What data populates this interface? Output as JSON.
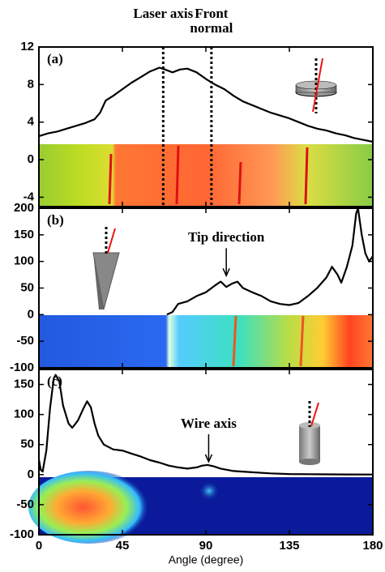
{
  "chart_data": [
    {
      "type": "line",
      "label": "(a)",
      "color": "#000000",
      "x": [
        0,
        5,
        10,
        15,
        20,
        25,
        30,
        33,
        36,
        40,
        45,
        50,
        55,
        60,
        65,
        68,
        72,
        76,
        80,
        85,
        90,
        95,
        100,
        105,
        110,
        115,
        120,
        125,
        130,
        135,
        140,
        145,
        150,
        155,
        160,
        165,
        170,
        175,
        180
      ],
      "values": [
        2.5,
        2.8,
        3.0,
        3.3,
        3.6,
        3.9,
        4.3,
        5.0,
        6.3,
        6.8,
        7.5,
        8.2,
        8.8,
        9.4,
        9.8,
        9.6,
        9.3,
        9.6,
        9.7,
        9.3,
        8.6,
        8.0,
        7.5,
        6.8,
        6.2,
        5.8,
        5.4,
        5.0,
        4.7,
        4.4,
        4.0,
        3.6,
        3.3,
        3.1,
        2.8,
        2.6,
        2.3,
        2.1,
        1.9
      ],
      "xlim": [
        0,
        180
      ],
      "xticks": [
        0,
        45,
        90,
        135,
        180
      ],
      "ylim": [
        -5,
        12
      ],
      "yticks": [
        12,
        8,
        4,
        0,
        -4
      ],
      "annotations": [
        {
          "text": "Laser axis",
          "x": 67
        },
        {
          "text": "Front normal",
          "x": 93
        }
      ]
    },
    {
      "type": "line",
      "label": "(b)",
      "color": "#000000",
      "x": [
        69,
        72,
        75,
        80,
        85,
        90,
        95,
        98,
        101,
        104,
        107,
        110,
        115,
        120,
        125,
        130,
        135,
        140,
        145,
        150,
        155,
        158,
        161,
        163,
        166,
        169,
        171,
        172,
        174,
        176,
        178,
        180
      ],
      "values": [
        0,
        5,
        20,
        25,
        35,
        42,
        55,
        62,
        52,
        58,
        62,
        50,
        42,
        35,
        25,
        20,
        18,
        22,
        35,
        50,
        70,
        90,
        75,
        60,
        90,
        130,
        190,
        200,
        150,
        115,
        100,
        110
      ],
      "xlim": [
        0,
        180
      ],
      "xticks": [
        0,
        45,
        90,
        135,
        180
      ],
      "ylim": [
        -100,
        200
      ],
      "yticks": [
        200,
        150,
        100,
        50,
        0,
        -50,
        -100
      ],
      "annotations": [
        {
          "text": "Tip direction",
          "x": 101,
          "y": 67
        }
      ]
    },
    {
      "type": "line",
      "label": "(c)",
      "color": "#000000",
      "x": [
        0,
        1,
        2,
        4,
        6,
        8,
        9,
        11,
        13,
        16,
        18,
        21,
        24,
        26,
        28,
        30,
        32,
        35,
        40,
        45,
        50,
        55,
        60,
        65,
        70,
        75,
        80,
        85,
        88,
        91,
        94,
        98,
        105,
        115,
        125,
        135,
        150,
        165,
        180
      ],
      "values": [
        25,
        8,
        5,
        40,
        110,
        160,
        166,
        155,
        115,
        85,
        78,
        90,
        110,
        122,
        112,
        85,
        65,
        50,
        42,
        40,
        35,
        30,
        24,
        20,
        15,
        12,
        10,
        12,
        15,
        16,
        14,
        10,
        6,
        4,
        2,
        1,
        0.5,
        0.3,
        0.2
      ],
      "xlim": [
        0,
        180
      ],
      "xticks": [
        0,
        45,
        90,
        135,
        180
      ],
      "xlabel": "Angle (degree)",
      "ylim": [
        -100,
        175
      ],
      "yticks": [
        150,
        100,
        50,
        0,
        -50,
        -100
      ],
      "annotations": [
        {
          "text": "Wire axis",
          "x": 91.5,
          "y": 16
        }
      ]
    }
  ]
}
